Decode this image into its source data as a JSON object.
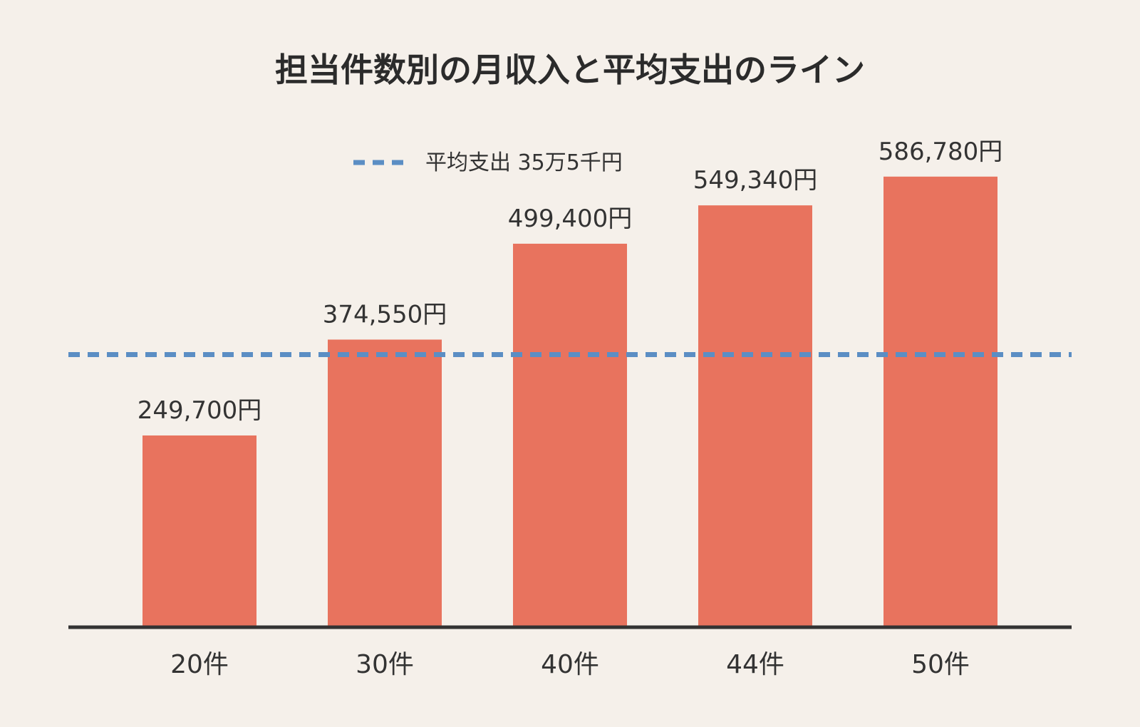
{
  "chart_data": {
    "type": "bar",
    "title": "担当件数別の月収入と平均支出のライン",
    "categories": [
      "20件",
      "30件",
      "40件",
      "44件",
      "50件"
    ],
    "values": [
      249700,
      374550,
      499400,
      549340,
      586780
    ],
    "value_labels": [
      "249,700円",
      "374,550円",
      "499,400円",
      "549,340円",
      "586,780円"
    ],
    "reference_line": {
      "label": "平均支出 35万5千円",
      "value": 355000,
      "color": "#5b8ec4",
      "style": "dashed"
    },
    "bar_color": "#e8735e",
    "axis_color": "#333333",
    "background": "#f5f0ea",
    "ylim": [
      0,
      620000
    ],
    "grid": false,
    "legend_placement": "top-center"
  }
}
